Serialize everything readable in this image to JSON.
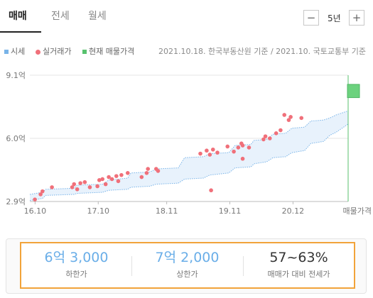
{
  "tabs": [
    "매매",
    "전세",
    "월세"
  ],
  "period": {
    "value": "5년",
    "minus": "−",
    "plus": "+"
  },
  "legend": [
    {
      "label": "시세",
      "color": "#79b4e8",
      "shape": "square"
    },
    {
      "label": "실거래가",
      "color": "#f0707a",
      "shape": "circle"
    },
    {
      "label": "현재 매물가격",
      "color": "#58c26e",
      "shape": "square"
    }
  ],
  "source_note": "2021.10.18. 한국부동산원 기준 / 2021.10. 국토교통부 기준",
  "chart_data": {
    "type": "line",
    "y_ticks": [
      {
        "value": 2.9,
        "label": "2.9억"
      },
      {
        "value": 6.0,
        "label": "6.0억"
      },
      {
        "value": 9.1,
        "label": "9.1억"
      }
    ],
    "x_ticks": [
      {
        "x": 2016.833,
        "label": "16.10"
      },
      {
        "x": 2017.833,
        "label": "17.10"
      },
      {
        "x": 2018.917,
        "label": "18.11"
      },
      {
        "x": 2019.917,
        "label": "19.11"
      },
      {
        "x": 2020.917,
        "label": "20.12"
      }
    ],
    "current_label": "매물가격",
    "x_range": [
      2016.75,
      2021.79
    ],
    "y_range": [
      2.9,
      9.1
    ],
    "grid": true,
    "legend_position": "top-left",
    "series": [
      {
        "name": "시세",
        "type": "band",
        "x": [
          2016.75,
          2016.95,
          2017.0,
          2017.45,
          2017.5,
          2017.9,
          2018.0,
          2018.3,
          2018.35,
          2018.65,
          2018.75,
          2019.1,
          2019.2,
          2019.5,
          2019.6,
          2019.9,
          2020.0,
          2020.25,
          2020.3,
          2020.5,
          2020.6,
          2020.8,
          2020.9,
          2021.1,
          2021.2,
          2021.4,
          2021.5,
          2021.6,
          2021.79
        ],
        "upper": [
          3.25,
          3.35,
          3.5,
          3.55,
          3.7,
          3.75,
          3.95,
          4.05,
          4.3,
          4.35,
          4.5,
          4.55,
          5.05,
          5.1,
          5.25,
          5.3,
          5.65,
          5.7,
          5.9,
          5.95,
          6.2,
          6.25,
          6.5,
          6.55,
          6.85,
          6.9,
          7.0,
          7.15,
          7.35
        ],
        "lower": [
          2.95,
          3.05,
          3.2,
          3.25,
          3.3,
          3.35,
          3.45,
          3.5,
          3.6,
          3.65,
          3.75,
          3.8,
          4.0,
          4.05,
          4.2,
          4.3,
          4.55,
          4.6,
          4.75,
          4.85,
          5.05,
          5.1,
          5.3,
          5.4,
          5.75,
          5.85,
          6.15,
          6.3,
          6.7
        ]
      },
      {
        "name": "실거래가",
        "type": "scatter",
        "points": [
          [
            2016.83,
            3.0
          ],
          [
            2016.92,
            3.25
          ],
          [
            2016.95,
            3.4
          ],
          [
            2017.1,
            3.6
          ],
          [
            2017.42,
            3.6
          ],
          [
            2017.45,
            3.75
          ],
          [
            2017.5,
            3.5
          ],
          [
            2017.55,
            3.8
          ],
          [
            2017.62,
            3.85
          ],
          [
            2017.7,
            3.6
          ],
          [
            2017.82,
            3.65
          ],
          [
            2017.85,
            3.95
          ],
          [
            2017.9,
            4.0
          ],
          [
            2017.95,
            3.75
          ],
          [
            2018.0,
            4.1
          ],
          [
            2018.05,
            4.0
          ],
          [
            2018.12,
            4.15
          ],
          [
            2018.15,
            3.9
          ],
          [
            2018.2,
            4.2
          ],
          [
            2018.3,
            4.3
          ],
          [
            2018.52,
            4.1
          ],
          [
            2018.6,
            4.3
          ],
          [
            2018.62,
            4.5
          ],
          [
            2018.75,
            4.5
          ],
          [
            2018.78,
            4.4
          ],
          [
            2019.45,
            5.25
          ],
          [
            2019.55,
            5.4
          ],
          [
            2019.6,
            5.2
          ],
          [
            2019.62,
            3.45
          ],
          [
            2019.65,
            5.45
          ],
          [
            2019.72,
            5.3
          ],
          [
            2019.88,
            5.6
          ],
          [
            2019.98,
            5.35
          ],
          [
            2020.05,
            5.55
          ],
          [
            2020.1,
            5.75
          ],
          [
            2020.12,
            5.65
          ],
          [
            2020.12,
            5.0
          ],
          [
            2020.22,
            5.55
          ],
          [
            2020.45,
            5.95
          ],
          [
            2020.48,
            6.1
          ],
          [
            2020.55,
            6.0
          ],
          [
            2020.65,
            6.25
          ],
          [
            2020.72,
            6.4
          ],
          [
            2020.78,
            7.15
          ],
          [
            2020.85,
            6.9
          ],
          [
            2020.88,
            7.05
          ],
          [
            2021.05,
            7.0
          ]
        ]
      },
      {
        "name": "현재 매물가격",
        "type": "range",
        "x": 2021.79,
        "low": 2.9,
        "high": 9.1,
        "box": [
          8.0,
          8.65
        ]
      }
    ]
  },
  "summary": [
    {
      "value": "6억 3,000",
      "label": "하한가",
      "style": "blue"
    },
    {
      "value": "7억 2,000",
      "label": "상한가",
      "style": "blue"
    },
    {
      "value": "57~63%",
      "label": "매매가 대비 전세가",
      "style": "dark"
    }
  ]
}
